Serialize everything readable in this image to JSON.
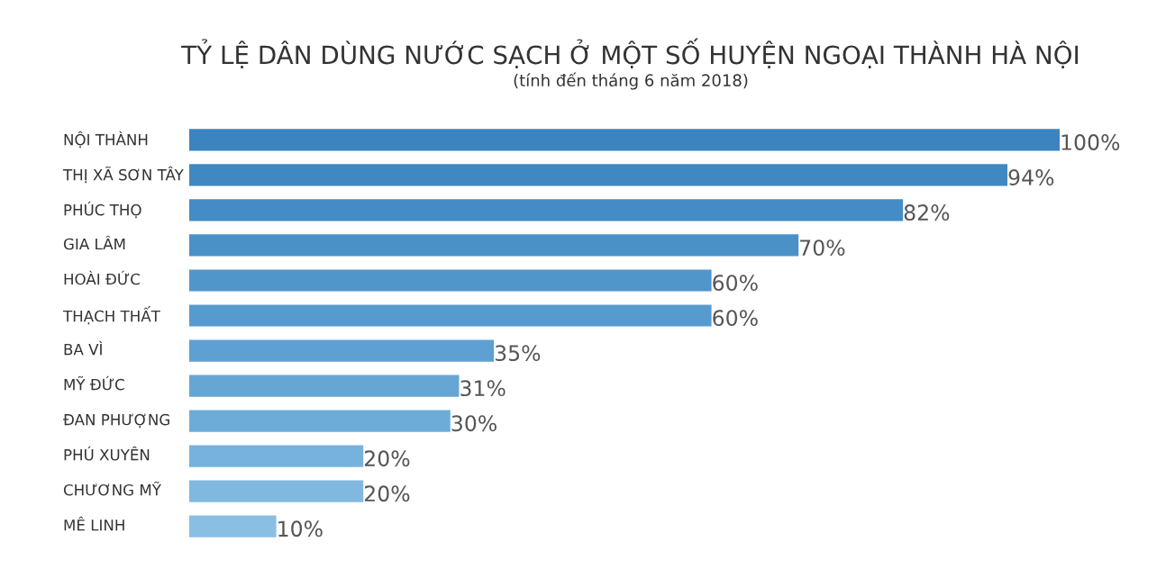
{
  "chart_data": {
    "type": "bar",
    "orientation": "horizontal",
    "title": "TỶ LỆ DÂN DÙNG NƯỚC SẠCH Ở MỘT SỐ HUYỆN NGOẠI THÀNH HÀ NỘI",
    "subtitle": "(tính đến tháng 6 năm 2018)",
    "categories": [
      "NỘI THÀNH",
      "THỊ XÃ SƠN TÂY",
      "PHÚC THỌ",
      "GIA LÂM",
      "HOÀI ĐỨC",
      "THẠCH THẤT",
      "BA VÌ",
      "MỸ ĐỨC",
      "ĐAN PHƯỢNG",
      "PHÚ XUYÊN",
      "CHƯƠNG MỸ",
      "MÊ LINH"
    ],
    "values": [
      100,
      94,
      82,
      70,
      60,
      60,
      35,
      31,
      30,
      20,
      20,
      10
    ],
    "value_labels": [
      "100%",
      "94%",
      "82%",
      "70%",
      "60%",
      "60%",
      "35%",
      "31%",
      "30%",
      "20%",
      "20%",
      "10%"
    ],
    "colors": [
      "#3b84bf",
      "#3f88c2",
      "#448cc5",
      "#4a91c8",
      "#5096cb",
      "#579bce",
      "#5ea0d1",
      "#66a6d5",
      "#6eacd8",
      "#77b2dc",
      "#80b8df",
      "#8abee3"
    ]
  }
}
